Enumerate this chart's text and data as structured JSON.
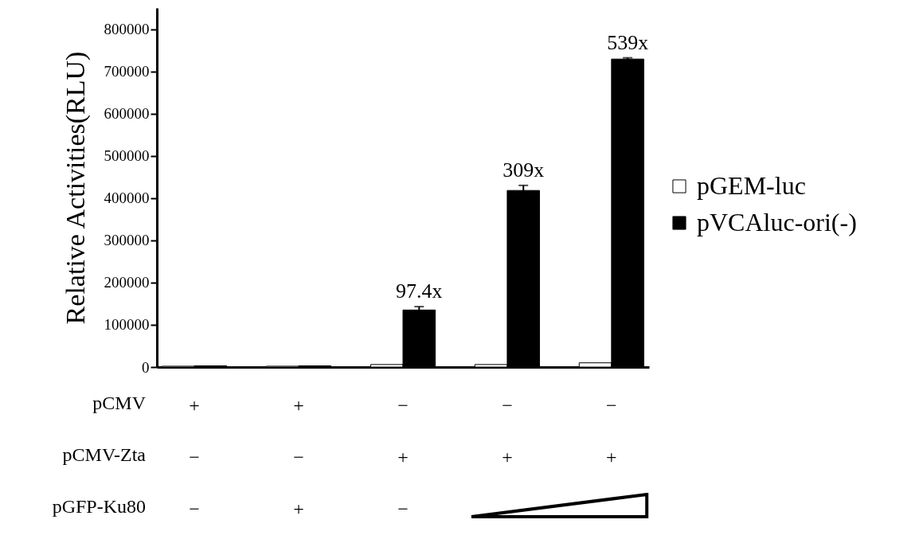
{
  "chart_data": {
    "type": "bar",
    "ylabel": "Relative Activities(RLU)",
    "categories": [
      "+\n−\n−",
      "+\n−\n+",
      "−\n+\n−",
      "−\n+",
      "−\n+"
    ],
    "series": [
      {
        "name": "pGEM-luc",
        "color": "#ffffff",
        "values": [
          2000,
          2000,
          6000,
          6000,
          10000
        ]
      },
      {
        "name": "pVCAluc-ori(-)",
        "color": "#000000",
        "values": [
          3000,
          3000,
          135000,
          418000,
          729000
        ],
        "errors": [
          null,
          null,
          8000,
          12000,
          3000
        ]
      }
    ],
    "ylim": [
      0,
      850000
    ],
    "yticks": [
      0,
      100000,
      200000,
      300000,
      400000,
      500000,
      600000,
      700000,
      800000
    ],
    "grid": false,
    "legend": "right",
    "annotations": [
      "pCMV",
      "pCMV-Zta",
      "pGFP-Ku80",
      {
        "text": "97.4x",
        "y": 143000
      },
      {
        "text": "309x",
        "y": 430000
      },
      {
        "text": "539x",
        "y": 732000
      }
    ]
  }
}
